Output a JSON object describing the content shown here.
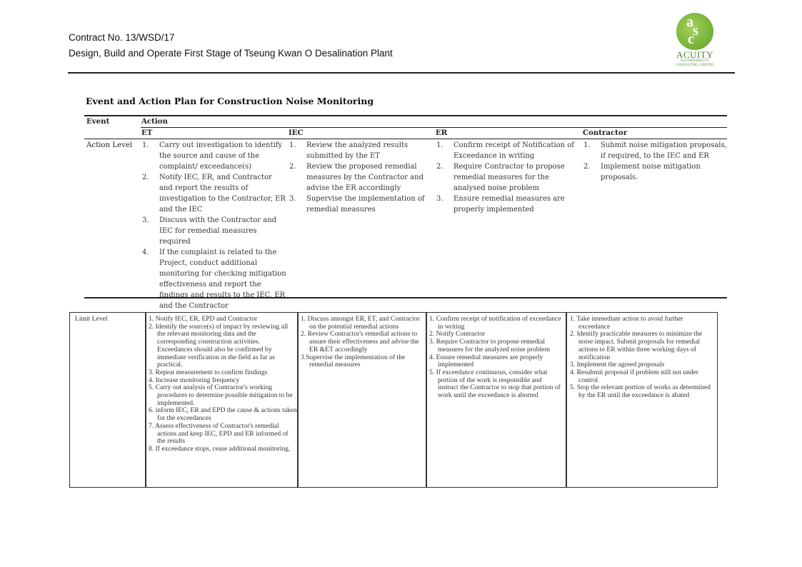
{
  "header": {
    "contract": "Contract No. 13/WSD/17",
    "project": "Design, Build and Operate First Stage of Tseung Kwan O Desalination Plant"
  },
  "logo": {
    "letters": "asc",
    "name": "ACUITY",
    "sub": "SUSTAINABILITY CONSULTING LIMITED",
    "color": "#5aa12a"
  },
  "title": "Event and Action Plan for Construction Noise Monitoring",
  "table1": {
    "headers": {
      "event": "Event",
      "action": "Action",
      "et": "ET",
      "iec": "IEC",
      "er": "ER",
      "contractor": "Contractor"
    },
    "row_label": "Action Level",
    "et": [
      {
        "n": "1.",
        "t": "Carry out investigation to identify the source and cause of the complaint/ exceedance(s)"
      },
      {
        "n": "2.",
        "t": "Notify IEC, ER, and Contractor and report the results of investigation to the Contractor, ER and the IEC"
      },
      {
        "n": "3.",
        "t": "Discuss with the Contractor and IEC for remedial measures required"
      },
      {
        "n": "4.",
        "t": "If the complaint is related to the Project, conduct additional monitoring for checking mitigation effectiveness and report the findings and results to the IEC, ER and the Contractor"
      }
    ],
    "iec": [
      {
        "n": "1.",
        "t": "Review the analyzed results submitted by the ET"
      },
      {
        "n": "2.",
        "t": "Review the proposed remedial measures by the Contractor and advise the ER accordingly"
      },
      {
        "n": "3.",
        "t": "Supervise the implementation of remedial measures"
      }
    ],
    "er": [
      {
        "n": "1.",
        "t": "Confirm receipt of Notification of Exceedance in writing"
      },
      {
        "n": "2.",
        "t": "Require Contractor to propose remedial measures for the analysed noise problem"
      },
      {
        "n": "3.",
        "t": "Ensure remedial measures are properly implemented"
      }
    ],
    "contractor": [
      {
        "n": "1.",
        "t": "Submit noise mitigation proposals, if required, to the IEC and ER"
      },
      {
        "n": "2.",
        "t": "Implement noise mitigation proposals."
      }
    ]
  },
  "table2": {
    "row_label": "Limit Level",
    "et": [
      "1. Notify IEC, ER, EPD and Contractor",
      "2. Identify the source(s) of impact by reviewing all the relevant monitoring data and the corresponding construction activities. Exceedances should also be confirmed by immediate verification in the field as far as practical.",
      "3. Repeat measurement to confirm findings",
      "4. Increase monitoring frequency",
      "5. Carry out analysis of Contractor's working procedures to determine possible mitigation to be implemented.",
      "6. inform IEC, ER and EPD the cause & actions taken for the exceedances",
      "7. Assess effectiveness of Contractor's remedial actions and keep IEC, EPD and ER informed of the results",
      "8. If exceedance stops, cease additional monitoring."
    ],
    "iec": [
      "1. Discuss amongst ER, ET, and Contractor on the potential remedial actions",
      "2. Review Contractor's remedial actions to assure their effectiveness and advise the ER &ET accordingly",
      "3.Supervise the implementation of the remedial measures"
    ],
    "er": [
      "1. Confirm receipt of notification of exceedance in writing",
      "2. Notify Contractor",
      "3. Require Contractor to propose remedial measures for the analyzed noise problem",
      "4. Ensure remedial measures are properly implemented",
      "5. If exceedance continuous, consider what portion of the work is responsible and instruct the Contractor to stop that portion of work until the exceedance is aborted"
    ],
    "contractor": [
      "1. Take immediate action to avoid further exceedance",
      "2. Identify practicable measures to minimize the noise impact.  Submit proposals for remedial actions to ER within three working days of notification",
      "3. Implement the agreed proposals",
      "4. Resubmit proposal if problem still not under control",
      "5. Stop the relevant portion of works as determined by the ER until the exceedance is abated"
    ]
  }
}
